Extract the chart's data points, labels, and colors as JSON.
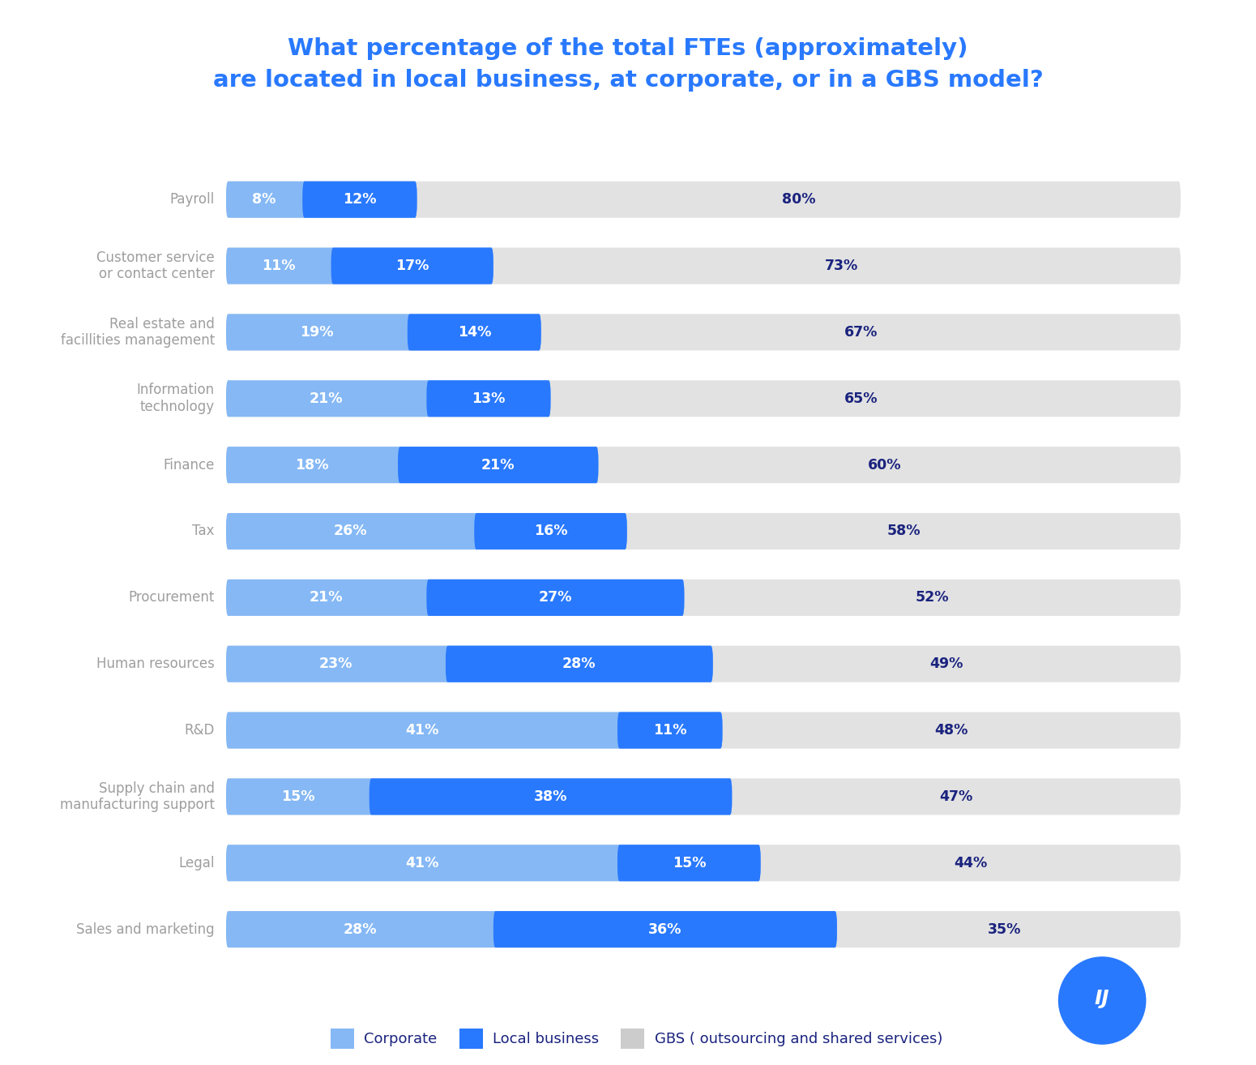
{
  "title_line1": "What percentage of the total FTEs (approximately)",
  "title_line2": "are located in local business, at corporate, or in a GBS model?",
  "title_color": "#2979FF",
  "categories": [
    "Payroll",
    "Customer service\nor contact center",
    "Real estate and\nfacillities management",
    "Information\ntechnology",
    "Finance",
    "Tax",
    "Procurement",
    "Human resources",
    "R&D",
    "Supply chain and\nmanufacturing support",
    "Legal",
    "Sales and marketing"
  ],
  "corporate": [
    8,
    11,
    19,
    21,
    18,
    26,
    21,
    23,
    41,
    15,
    41,
    28
  ],
  "local_business": [
    12,
    17,
    14,
    13,
    21,
    16,
    27,
    28,
    11,
    38,
    15,
    36
  ],
  "gbs": [
    80,
    73,
    67,
    65,
    60,
    58,
    52,
    49,
    48,
    47,
    44,
    35
  ],
  "color_corporate": "#85B8F5",
  "color_local_business": "#2979FF",
  "color_gbs": "#E2E2E2",
  "color_gbs_text": "#1A237E",
  "bar_text_color": "#FFFFFF",
  "background_color": "#FFFFFF",
  "legend_corporate": "Corporate",
  "legend_local": "Local business",
  "legend_gbs": "GBS ( outsourcing and shared services)"
}
